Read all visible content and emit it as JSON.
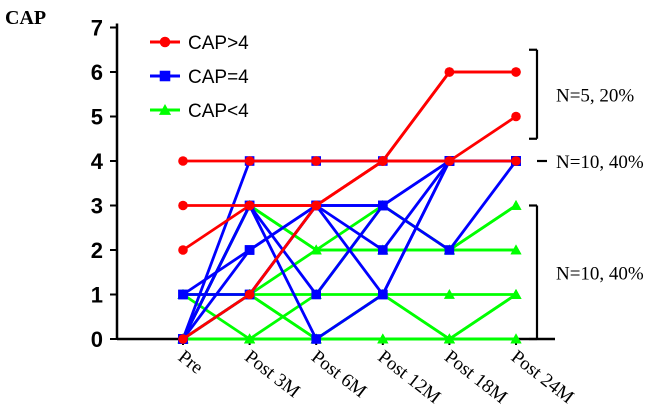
{
  "chart_data": {
    "type": "line",
    "ylabel": "CAP",
    "categories": [
      "Pre",
      "Post 3M",
      "Post 6M",
      "Post 12M",
      "Post 18M",
      "Post 24M"
    ],
    "ylim": [
      0,
      7
    ],
    "yticks": [
      0,
      1,
      2,
      3,
      4,
      5,
      6,
      7
    ],
    "legend": [
      {
        "label": "CAP>4",
        "color": "#ff0000",
        "marker": "circle"
      },
      {
        "label": "CAP=4",
        "color": "#0000ff",
        "marker": "square"
      },
      {
        "label": "CAP<4",
        "color": "#00ff00",
        "marker": "triangle"
      }
    ],
    "series": [
      {
        "group": "CAP>4",
        "color": "#ff0000",
        "marker": "circle",
        "values": [
          4,
          4,
          4,
          4,
          4,
          5
        ]
      },
      {
        "group": "CAP>4",
        "color": "#ff0000",
        "marker": "circle",
        "values": [
          3,
          3,
          3,
          4,
          4,
          4
        ]
      },
      {
        "group": "CAP>4",
        "color": "#ff0000",
        "marker": "circle",
        "values": [
          2,
          3,
          3,
          4,
          6,
          6
        ]
      },
      {
        "group": "CAP>4",
        "color": "#ff0000",
        "marker": "circle",
        "values": [
          0,
          1,
          3,
          4,
          6,
          6
        ]
      },
      {
        "group": "CAP=4",
        "color": "#0000ff",
        "marker": "square",
        "values": [
          0,
          4,
          4,
          4,
          4,
          4
        ]
      },
      {
        "group": "CAP=4",
        "color": "#0000ff",
        "marker": "square",
        "values": [
          0,
          2,
          3,
          3,
          4,
          4
        ]
      },
      {
        "group": "CAP=4",
        "color": "#0000ff",
        "marker": "square",
        "values": [
          1,
          1,
          3,
          1,
          4,
          4
        ]
      },
      {
        "group": "CAP=4",
        "color": "#0000ff",
        "marker": "square",
        "values": [
          1,
          2,
          3,
          3,
          4,
          4
        ]
      },
      {
        "group": "CAP=4",
        "color": "#0000ff",
        "marker": "square",
        "values": [
          0,
          3,
          1,
          3,
          2,
          4
        ]
      },
      {
        "group": "CAP=4",
        "color": "#0000ff",
        "marker": "square",
        "values": [
          0,
          3,
          0,
          1,
          4,
          4
        ]
      },
      {
        "group": "CAP=4",
        "color": "#0000ff",
        "marker": "square",
        "values": [
          0,
          1,
          3,
          2,
          4,
          4
        ]
      },
      {
        "group": "CAP<4",
        "color": "#00ff00",
        "marker": "triangle",
        "values": [
          1,
          1,
          1,
          1,
          1,
          1
        ]
      },
      {
        "group": "CAP<4",
        "color": "#00ff00",
        "marker": "triangle",
        "values": [
          0,
          3,
          2,
          3,
          2,
          3
        ]
      },
      {
        "group": "CAP<4",
        "color": "#00ff00",
        "marker": "triangle",
        "values": [
          0,
          3,
          2,
          2,
          2,
          2
        ]
      },
      {
        "group": "CAP<4",
        "color": "#00ff00",
        "marker": "triangle",
        "values": [
          1,
          1,
          2,
          2,
          2,
          2
        ]
      },
      {
        "group": "CAP<4",
        "color": "#00ff00",
        "marker": "triangle",
        "values": [
          0,
          1,
          0,
          1,
          0,
          1
        ]
      },
      {
        "group": "CAP<4",
        "color": "#00ff00",
        "marker": "triangle",
        "values": [
          0,
          0,
          1,
          3,
          2,
          3
        ]
      },
      {
        "group": "CAP<4",
        "color": "#00ff00",
        "marker": "triangle",
        "values": [
          0,
          0,
          0,
          0,
          0,
          0
        ]
      },
      {
        "group": "CAP<4",
        "color": "#00ff00",
        "marker": "triangle",
        "values": [
          1,
          0,
          0,
          0,
          0,
          0
        ]
      },
      {
        "group": "CAP<4",
        "color": "#00ff00",
        "marker": "triangle",
        "values": [
          0,
          1,
          0,
          0,
          0,
          0
        ]
      },
      {
        "group": "CAP<4",
        "color": "#00ff00",
        "marker": "triangle",
        "values": [
          0,
          0,
          0,
          1,
          0,
          1
        ]
      }
    ],
    "annotations": [
      {
        "text": "N=5, 20%",
        "range": [
          4.5,
          6.5
        ]
      },
      {
        "text": "N=10, 40%",
        "range": [
          4,
          4
        ]
      },
      {
        "text": "N=10, 40%",
        "range": [
          0,
          3
        ]
      }
    ]
  }
}
